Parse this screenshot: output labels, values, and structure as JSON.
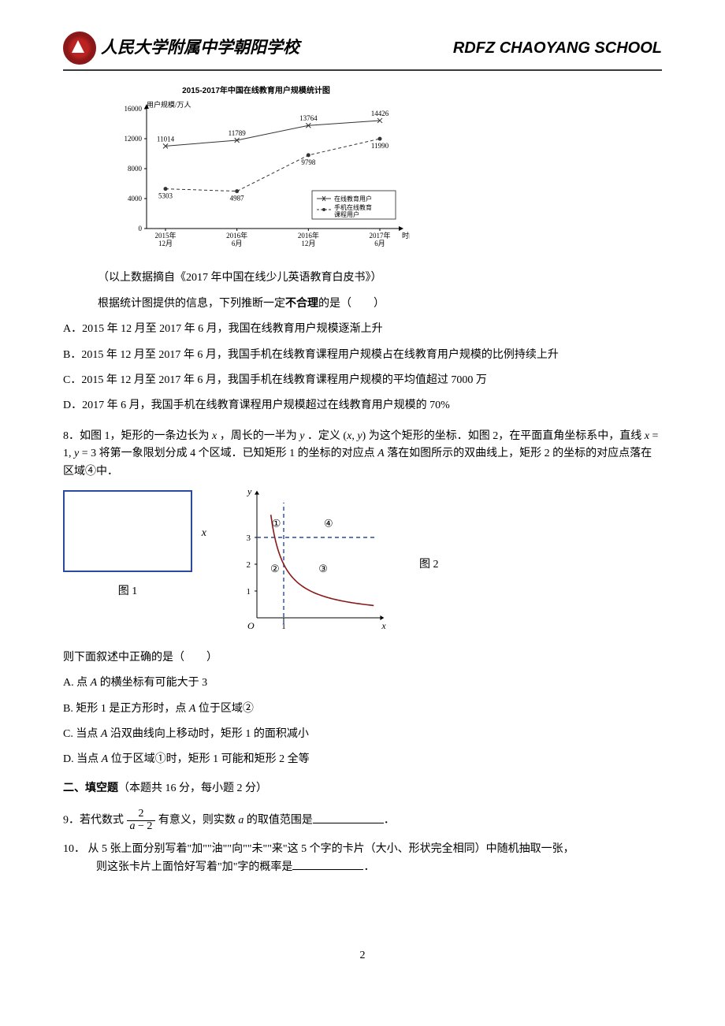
{
  "header": {
    "school_cn": "人民大学附属中学朝阳学校",
    "school_en": "RDFZ CHAOYANG SCHOOL"
  },
  "chart": {
    "title": "2015-2017年中国在线教育用户规模统计图",
    "y_axis_label": "用户规模/万人",
    "x_axis_label": "时间",
    "ylim": [
      0,
      16000
    ],
    "ytick_step": 4000,
    "yticks": [
      0,
      4000,
      8000,
      12000,
      16000
    ],
    "x_labels": [
      "2015年\n12月",
      "2016年\n6月",
      "2016年\n12月",
      "2017年\n6月"
    ],
    "series": [
      {
        "name": "在线教育用户",
        "marker": "x",
        "line_color": "#333333",
        "dash": "solid",
        "values": [
          11014,
          11789,
          13764,
          14426
        ]
      },
      {
        "name": "手机在线教育课程用户",
        "marker": "circle",
        "line_color": "#333333",
        "dash": "dashed",
        "values": [
          5303,
          4987,
          9798,
          11990
        ]
      }
    ],
    "legend_items": [
      "在线教育用户",
      "手机在线教育\n课程用户"
    ],
    "background_color": "#ffffff",
    "axis_color": "#000000"
  },
  "q7": {
    "source_note": "（以上数据摘自《2017 年中国在线少儿英语教育白皮书》）",
    "stem": "根据统计图提供的信息，下列推断一定不合理的是（　　）",
    "opt_a": "A．2015 年 12 月至 2017 年 6 月，我国在线教育用户规模逐渐上升",
    "opt_b": "B．2015 年 12 月至 2017 年 6 月，我国手机在线教育课程用户规模占在线教育用户规模的比例持续上升",
    "opt_c": "C．2015 年 12 月至 2017 年 6 月，我国手机在线教育课程用户规模的平均值超过 7000 万",
    "opt_d": "D．2017 年 6 月，我国手机在线教育课程用户规模超过在线教育用户规模的 70%"
  },
  "q8": {
    "stem": "8．如图 1，矩形的一条边长为 x ，周长的一半为 y ．定义 (x, y) 为这个矩形的坐标．如图 2，在平面直角坐标系中，直线 x = 1, y = 3 将第一象限划分成 4 个区域．已知矩形 1 的坐标的对应点 A 落在如图所示的双曲线上，矩形 2 的坐标的对应点落在区域④中．",
    "fig1_label": "图 1",
    "fig2_label": "图 2",
    "fig2": {
      "xlim": [
        0,
        4
      ],
      "ylim": [
        0,
        4
      ],
      "vline_x": 1,
      "hline_y": 3,
      "xticks": [
        1
      ],
      "yticks": [
        1,
        2,
        3
      ],
      "regions": {
        "1": "①",
        "2": "②",
        "3": "③",
        "4": "④"
      },
      "curve_color": "#8a1818",
      "hyperbola_k": 2.0,
      "axis_label_x": "x",
      "axis_label_y": "y",
      "origin_label": "O",
      "dash_color": "#2a4aa0"
    },
    "followup": "则下面叙述中正确的是（　　）",
    "opt_a": "A.  点 A 的横坐标有可能大于 3",
    "opt_b": "B.  矩形 1 是正方形时，点 A 位于区域②",
    "opt_c": "C.  当点 A 沿双曲线向上移动时，矩形 1 的面积减小",
    "opt_d": "D.  当点 A 位于区域①时，矩形 1 可能和矩形 2 全等"
  },
  "section2": {
    "title": "二、填空题（本题共 16 分，每小题 2 分）"
  },
  "q9": {
    "prefix": "9．若代数式",
    "frac_num": "2",
    "frac_den_pre": "a",
    "frac_den_post": " − 2",
    "mid": "有意义，则实数 ",
    "var": "a",
    "suffix": " 的取值范围是",
    "tail": "．"
  },
  "q10": {
    "line1": "10．  从 5 张上面分别写着\"加\"\"油\"\"向\"\"未\"\"来\"这 5 个字的卡片（大小、形状完全相同）中随机抽取一张，",
    "line2": "则这张卡片上面恰好写着\"加\"字的概率是",
    "tail": "．"
  },
  "page_number": "2"
}
